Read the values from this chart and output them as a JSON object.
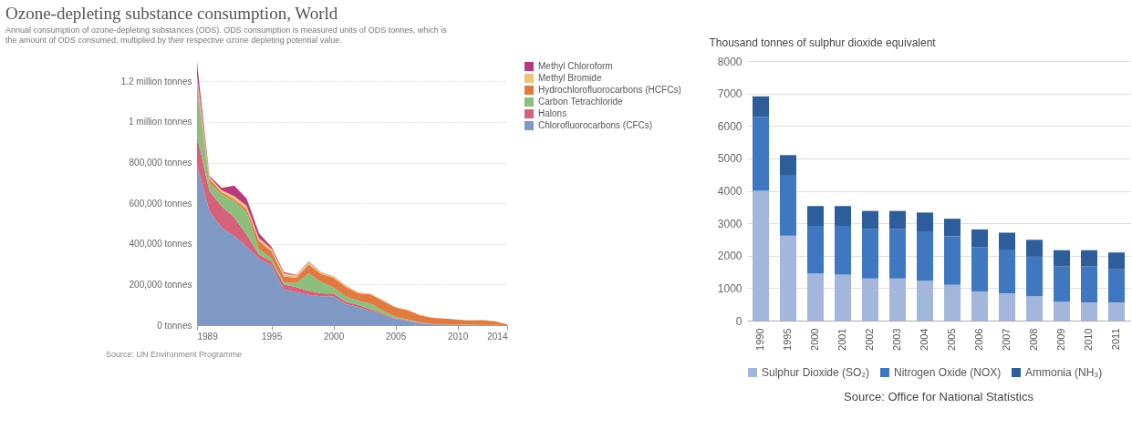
{
  "chart_data": [
    {
      "type": "area",
      "title": "Ozone-depleting substance consumption, World",
      "subtitle": "Annual consumption of ozone-depleting substances (ODS). ODS consumption is measured units of ODS tonnes, which is the amount of ODS consumed, multiplied by their respective ozone depleting potential value.",
      "stacked": true,
      "x": [
        1989,
        1990,
        1991,
        1992,
        1993,
        1994,
        1995,
        1996,
        1997,
        1998,
        1999,
        2000,
        2001,
        2002,
        2003,
        2004,
        2005,
        2006,
        2007,
        2008,
        2009,
        2010,
        2011,
        2012,
        2013,
        2014
      ],
      "series": [
        {
          "name": "Chlorofluorocarbons (CFCs)",
          "color": "#7f98c4",
          "values": [
            790000,
            560000,
            478000,
            439000,
            386000,
            327000,
            294000,
            175000,
            162000,
            149000,
            142000,
            142000,
            103000,
            90000,
            70000,
            50000,
            30000,
            20000,
            8000,
            3000,
            2000,
            1000,
            1000,
            0,
            0,
            0
          ]
        },
        {
          "name": "Halons",
          "color": "#d6617a",
          "values": [
            140000,
            100000,
            106000,
            92000,
            59000,
            20000,
            20000,
            25000,
            25000,
            20000,
            15000,
            14000,
            12000,
            10000,
            8000,
            6000,
            4000,
            3000,
            2000,
            1000,
            1000,
            0,
            0,
            0,
            0,
            0
          ]
        },
        {
          "name": "Carbon Tetrachloride",
          "color": "#8dbf7c",
          "values": [
            240000,
            40000,
            59000,
            79000,
            112000,
            26000,
            15000,
            10000,
            20000,
            85000,
            55000,
            30000,
            25000,
            20000,
            28000,
            15000,
            8000,
            5000,
            3000,
            2000,
            1000,
            1000,
            1000,
            1000,
            1000,
            0
          ]
        },
        {
          "name": "Hydrochlorofluorocarbons (HCFCs)",
          "color": "#df7b42",
          "values": [
            20000,
            20000,
            10000,
            10000,
            15000,
            40000,
            35000,
            30000,
            26000,
            45000,
            40000,
            47000,
            48000,
            37000,
            45000,
            48000,
            45000,
            45000,
            35000,
            30000,
            28000,
            25000,
            21000,
            24000,
            18000,
            4000
          ]
        },
        {
          "name": "Methyl Bromide",
          "color": "#efc27e",
          "values": [
            40000,
            10000,
            10000,
            15000,
            15000,
            15000,
            12000,
            15000,
            12000,
            13000,
            8000,
            7000,
            6000,
            5000,
            5000,
            4000,
            3000,
            3000,
            2000,
            1000,
            1000,
            1000,
            1000,
            1000,
            1000,
            0
          ]
        },
        {
          "name": "Methyl Chloroform",
          "color": "#b83a7c",
          "values": [
            60000,
            5000,
            13000,
            52000,
            36000,
            24000,
            10000,
            6000,
            3000,
            2000,
            1000,
            1000,
            1000,
            0,
            0,
            0,
            0,
            0,
            0,
            0,
            0,
            0,
            0,
            0,
            0,
            0
          ]
        }
      ],
      "xlim": [
        1989,
        2014
      ],
      "xticks": [
        1989,
        1995,
        2000,
        2005,
        2010,
        2014
      ],
      "ylim": [
        0,
        1300000
      ],
      "yticks": [
        {
          "value": 0,
          "label": "0 tonnes"
        },
        {
          "value": 200000,
          "label": "200,000 tonnes"
        },
        {
          "value": 400000,
          "label": "400,000 tonnes"
        },
        {
          "value": 600000,
          "label": "600,000 tonnes"
        },
        {
          "value": 800000,
          "label": "800,000 tonnes"
        },
        {
          "value": 1000000,
          "label": "1 million tonnes"
        },
        {
          "value": 1200000,
          "label": "1.2 million tonnes"
        }
      ],
      "grid": "y",
      "legend": "right",
      "annotations": [
        "Source: UN Environment Programme"
      ]
    },
    {
      "type": "bar",
      "ylabel": "Thousand tonnes of sulphur dioxide equivalent",
      "stacked": true,
      "categories": [
        "1990",
        "1995",
        "2000",
        "2001",
        "2002",
        "2003",
        "2004",
        "2005",
        "2006",
        "2007",
        "2008",
        "2009",
        "2010",
        "2011"
      ],
      "series": [
        {
          "name": "Sulphur Dioxide (SO₂)",
          "color": "#a3b6dc",
          "values": [
            4000,
            2620,
            1450,
            1420,
            1300,
            1300,
            1230,
            1100,
            900,
            840,
            750,
            580,
            560,
            560
          ]
        },
        {
          "name": "Nitrogen Oxide (NOX)",
          "color": "#3f78c0",
          "values": [
            2270,
            1870,
            1470,
            1500,
            1520,
            1520,
            1520,
            1500,
            1360,
            1350,
            1220,
            1090,
            1110,
            1020
          ]
        },
        {
          "name": "Ammonia (NH₃)",
          "color": "#2d5d9b",
          "values": [
            640,
            610,
            610,
            610,
            560,
            560,
            580,
            540,
            550,
            520,
            520,
            500,
            500,
            520
          ]
        }
      ],
      "ylim": [
        0,
        8000
      ],
      "yticks": [
        0,
        1000,
        2000,
        3000,
        4000,
        5000,
        6000,
        7000,
        8000
      ],
      "grid": "y",
      "legend": "bottom",
      "annotations": [
        "Source: Office for National Statistics"
      ]
    }
  ]
}
